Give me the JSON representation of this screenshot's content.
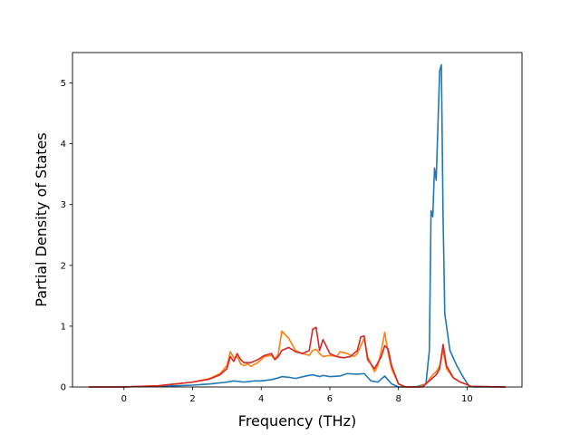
{
  "chart_data": {
    "type": "line",
    "title": "",
    "xlabel": "Frequency (THz)",
    "ylabel": "Partial Density of States",
    "xlim": [
      -1.5,
      11.6
    ],
    "ylim": [
      0,
      5.5
    ],
    "xticks": [
      0,
      2,
      4,
      6,
      8,
      10
    ],
    "xtick_labels": [
      "0",
      "2",
      "4",
      "6",
      "8",
      "10"
    ],
    "yticks": [
      0,
      1,
      2,
      3,
      4,
      5
    ],
    "ytick_labels": [
      "0",
      "1",
      "2",
      "3",
      "4",
      "5"
    ],
    "grid": false,
    "legend": "none",
    "series": [
      {
        "color": "#1f77b4",
        "x": [
          -1.0,
          0.0,
          0.5,
          1.0,
          1.5,
          2.0,
          2.5,
          3.0,
          3.2,
          3.5,
          3.8,
          4.0,
          4.3,
          4.5,
          4.6,
          4.8,
          5.0,
          5.3,
          5.5,
          5.7,
          5.8,
          6.0,
          6.3,
          6.5,
          6.8,
          7.0,
          7.2,
          7.4,
          7.6,
          7.8,
          8.0,
          8.5,
          8.8,
          8.9,
          8.95,
          9.0,
          9.05,
          9.1,
          9.15,
          9.2,
          9.25,
          9.3,
          9.35,
          9.5,
          9.7,
          9.9,
          10.05,
          10.2,
          11.1
        ],
        "y": [
          0.0,
          0.0,
          0.01,
          0.01,
          0.02,
          0.03,
          0.05,
          0.08,
          0.1,
          0.08,
          0.1,
          0.1,
          0.12,
          0.15,
          0.17,
          0.16,
          0.14,
          0.18,
          0.2,
          0.17,
          0.19,
          0.17,
          0.18,
          0.22,
          0.21,
          0.22,
          0.1,
          0.08,
          0.18,
          0.05,
          0.0,
          0.0,
          0.05,
          0.6,
          2.9,
          2.8,
          3.6,
          3.4,
          4.3,
          5.2,
          5.3,
          2.8,
          1.2,
          0.6,
          0.35,
          0.15,
          0.02,
          0.0,
          0.0
        ]
      },
      {
        "color": "#ff7f0e",
        "x": [
          -1.0,
          0.0,
          0.5,
          1.0,
          1.5,
          2.0,
          2.5,
          2.8,
          3.0,
          3.1,
          3.2,
          3.3,
          3.4,
          3.5,
          3.6,
          3.7,
          3.9,
          4.1,
          4.3,
          4.4,
          4.5,
          4.6,
          4.8,
          5.0,
          5.2,
          5.4,
          5.5,
          5.6,
          5.7,
          5.8,
          6.0,
          6.2,
          6.3,
          6.5,
          6.7,
          6.8,
          7.0,
          7.1,
          7.3,
          7.4,
          7.5,
          7.6,
          7.7,
          7.8,
          8.0,
          8.2,
          8.6,
          8.8,
          9.0,
          9.1,
          9.2,
          9.3,
          9.4,
          9.6,
          9.8,
          10.0,
          10.1,
          11.1
        ],
        "y": [
          0.0,
          0.0,
          0.01,
          0.02,
          0.05,
          0.08,
          0.14,
          0.22,
          0.35,
          0.58,
          0.48,
          0.5,
          0.38,
          0.35,
          0.38,
          0.34,
          0.4,
          0.5,
          0.52,
          0.45,
          0.55,
          0.92,
          0.8,
          0.6,
          0.55,
          0.52,
          0.6,
          0.62,
          0.55,
          0.5,
          0.52,
          0.5,
          0.58,
          0.55,
          0.5,
          0.55,
          0.8,
          0.5,
          0.25,
          0.35,
          0.6,
          0.9,
          0.55,
          0.3,
          0.05,
          0.0,
          0.0,
          0.05,
          0.2,
          0.25,
          0.35,
          0.6,
          0.3,
          0.15,
          0.08,
          0.04,
          0.01,
          0.0
        ]
      },
      {
        "color": "#d62728",
        "x": [
          -1.0,
          0.0,
          0.5,
          1.0,
          1.5,
          2.0,
          2.5,
          2.8,
          3.0,
          3.1,
          3.2,
          3.3,
          3.4,
          3.5,
          3.7,
          3.9,
          4.1,
          4.3,
          4.4,
          4.5,
          4.6,
          4.8,
          5.0,
          5.2,
          5.4,
          5.5,
          5.6,
          5.7,
          5.8,
          6.0,
          6.2,
          6.4,
          6.6,
          6.8,
          6.9,
          7.0,
          7.1,
          7.3,
          7.4,
          7.5,
          7.6,
          7.7,
          7.8,
          8.0,
          8.2,
          8.7,
          8.9,
          9.1,
          9.2,
          9.3,
          9.4,
          9.6,
          9.8,
          10.0,
          10.1,
          11.1
        ],
        "y": [
          0.0,
          0.0,
          0.01,
          0.02,
          0.05,
          0.08,
          0.13,
          0.2,
          0.3,
          0.5,
          0.42,
          0.55,
          0.45,
          0.4,
          0.4,
          0.45,
          0.52,
          0.55,
          0.45,
          0.5,
          0.6,
          0.65,
          0.58,
          0.55,
          0.6,
          0.95,
          0.98,
          0.6,
          0.78,
          0.55,
          0.5,
          0.48,
          0.5,
          0.6,
          0.82,
          0.84,
          0.45,
          0.3,
          0.4,
          0.5,
          0.68,
          0.62,
          0.35,
          0.05,
          0.0,
          0.0,
          0.1,
          0.2,
          0.3,
          0.7,
          0.35,
          0.15,
          0.08,
          0.04,
          0.01,
          0.0
        ]
      }
    ]
  }
}
